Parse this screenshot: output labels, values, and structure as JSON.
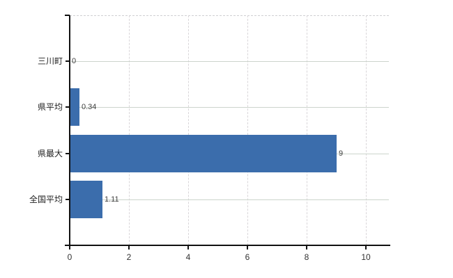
{
  "chart": {
    "background_color": "#ffffff",
    "bar_color": "#3b6dac",
    "axis_color": "#111111",
    "h_grid_color": "#ccd4cc",
    "v_grid_color": "#d9d6d9",
    "top_border_color": "#cfcfd2",
    "value_label_color": "#3d3d3d",
    "tick_label_color": "#333333",
    "category_label_color": "#1f1f1f"
  },
  "chart_data": {
    "type": "bar",
    "orientation": "horizontal",
    "title": "",
    "xlabel": "",
    "ylabel": "",
    "categories": [
      "三川町",
      "県平均",
      "県最大",
      "全国平均"
    ],
    "values": [
      0,
      0.34,
      9,
      1.11
    ],
    "value_labels": [
      "0",
      "0.34",
      "9",
      "1.11"
    ],
    "x_ticks": [
      0,
      2,
      4,
      6,
      8,
      10
    ],
    "xlim": [
      0,
      10.8
    ],
    "grid": true,
    "grid_style": {
      "vertical": "dashed",
      "horizontal": "solid",
      "top_border": "dashed"
    },
    "legend": false
  }
}
